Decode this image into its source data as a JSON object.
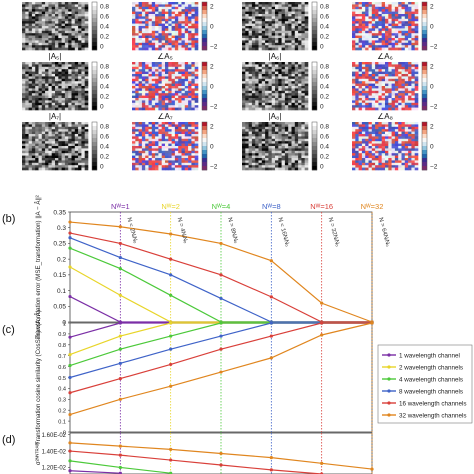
{
  "panels": {
    "a_labels": [
      "|A₅|",
      "∠A₅",
      "|A₆|",
      "∠A₆",
      "|A₇|",
      "∠A₇",
      "|A₈|",
      "∠A₈"
    ],
    "b_label": "(b)",
    "c_label": "(c)",
    "d_label": "(d)"
  },
  "amp_colorbar_ticks": [
    "0.8",
    "0.6",
    "0.4",
    "0.2",
    "0"
  ],
  "phase_colorbar_ticks": [
    "2",
    "0",
    "−2"
  ],
  "nw_labels": [
    "Nᵂ=1",
    "Nᵂ=2",
    "Nᵂ=4",
    "Nᵂ=8",
    "Nᵂ=16",
    "Nᵂ=32"
  ],
  "n_labels": [
    "N = 2NᵢNₒ",
    "N = 4NᵢNₒ",
    "N = 8NᵢNₒ",
    "N = 16NᵢNₒ",
    "N = 32NᵢNₒ",
    "N = 64NᵢNₒ"
  ],
  "colors": {
    "w1": "#7b2fa6",
    "w2": "#e8d52a",
    "w4": "#4cc93a",
    "w8": "#3f63c8",
    "w16": "#d9403a",
    "w32": "#e0861f"
  },
  "chart_data": [
    {
      "type": "line",
      "panel": "b",
      "ylabel": "Transformation error (MSE_transformation) ||A − Â||²",
      "ylim": [
        0,
        0.35
      ],
      "yticks": [
        "0",
        "0.05",
        "0.1",
        "0.15",
        "0.2",
        "0.25",
        "0.3",
        "0.35"
      ],
      "x": [
        0,
        1,
        2,
        3,
        4,
        5,
        6
      ],
      "series": [
        {
          "name": "1 wavelength channel",
          "values": [
            0.081,
            0.0,
            0.0,
            0.0,
            0.0,
            0.0,
            0.0
          ]
        },
        {
          "name": "2 wavelength channels",
          "values": [
            0.175,
            0.085,
            0.0,
            0.0,
            0.0,
            0.0,
            0.0
          ]
        },
        {
          "name": "4 wavelength channels",
          "values": [
            0.235,
            0.17,
            0.085,
            0.0,
            0.0,
            0.0,
            0.0
          ]
        },
        {
          "name": "8 wavelength channels",
          "values": [
            0.268,
            0.205,
            0.15,
            0.075,
            0.0,
            0.0,
            0.0
          ]
        },
        {
          "name": "16 wavelength channels",
          "values": [
            0.283,
            0.25,
            0.2,
            0.15,
            0.08,
            0.0,
            0.0
          ]
        },
        {
          "name": "32 wavelength channels",
          "values": [
            0.318,
            0.303,
            0.28,
            0.25,
            0.195,
            0.06,
            0.0
          ]
        }
      ]
    },
    {
      "type": "line",
      "panel": "c",
      "ylabel": "Transformation cosine similarity (CosSim) ν(A, Â)",
      "ylim": [
        0,
        1
      ],
      "yticks": [
        "0",
        "0.1",
        "0.2",
        "0.3",
        "0.4",
        "0.5",
        "0.6",
        "0.7",
        "0.8",
        "0.9",
        "1"
      ],
      "x": [
        0,
        1,
        2,
        3,
        4,
        5,
        6
      ],
      "series": [
        {
          "name": "1 wavelength channel",
          "values": [
            0.87,
            1.0,
            1.0,
            1.0,
            1.0,
            1.0,
            1.0
          ]
        },
        {
          "name": "2 wavelength channels",
          "values": [
            0.71,
            0.88,
            1.0,
            1.0,
            1.0,
            1.0,
            1.0
          ]
        },
        {
          "name": "4 wavelength channels",
          "values": [
            0.61,
            0.76,
            0.88,
            1.0,
            1.0,
            1.0,
            1.0
          ]
        },
        {
          "name": "8 wavelength channels",
          "values": [
            0.5,
            0.63,
            0.76,
            0.88,
            1.0,
            1.0,
            1.0
          ]
        },
        {
          "name": "16 wavelength channels",
          "values": [
            0.36,
            0.49,
            0.62,
            0.76,
            0.88,
            1.0,
            1.0
          ]
        },
        {
          "name": "32 wavelength channels",
          "values": [
            0.16,
            0.3,
            0.42,
            0.55,
            0.68,
            0.89,
            1.0
          ]
        }
      ]
    },
    {
      "type": "line",
      "panel": "d",
      "ylabel": "σ²ᴺᴺᵀᴿᴬᴵᴺ",
      "yticks": [
        "1.60E-02",
        "1.40E-02",
        "1.20E-02"
      ],
      "ylim": [
        0.0112,
        0.0162
      ],
      "x": [
        0,
        1,
        2,
        3,
        4,
        5,
        6
      ],
      "series": [
        {
          "name": "32 wavelength channels",
          "values": [
            0.015,
            0.0146,
            0.0142,
            0.0137,
            0.0132,
            0.0125,
            0.0118
          ]
        },
        {
          "name": "16 wavelength channels",
          "values": [
            0.014,
            0.0135,
            0.0129,
            0.0123,
            0.0117,
            0.0112,
            null
          ]
        },
        {
          "name": "4 wavelength channels",
          "values": [
            0.0128,
            0.012,
            0.0113,
            null,
            null,
            null,
            null
          ]
        },
        {
          "name": "1 wavelength channel",
          "values": [
            0.0116,
            0.0113,
            null,
            null,
            null,
            null,
            null
          ]
        }
      ]
    }
  ],
  "legend": [
    "1 wavelength channel",
    "2 wavelength channels",
    "4 wavelength channels",
    "8 wavelength channels",
    "16 wavelength channels",
    "32 wavelength channels"
  ]
}
